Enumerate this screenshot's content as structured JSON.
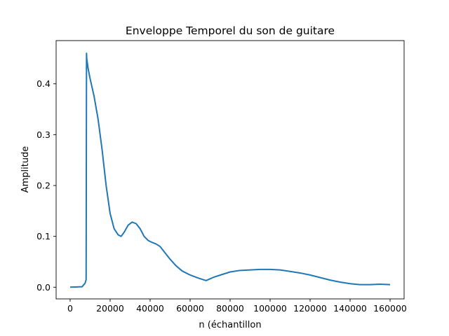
{
  "chart_data": {
    "type": "line",
    "title": "Enveloppe Temporel du son de guitare",
    "xlabel": "n (échantillon",
    "ylabel": "Amplitude",
    "xlim": [
      -7000,
      167000
    ],
    "ylim": [
      -0.023,
      0.485
    ],
    "xticks": [
      0,
      20000,
      40000,
      60000,
      80000,
      100000,
      120000,
      140000,
      160000
    ],
    "yticks": [
      0.0,
      0.1,
      0.2,
      0.3,
      0.4
    ],
    "grid": false,
    "legend": "none",
    "series": [
      {
        "color": "#1f77b4",
        "x": [
          0,
          6000,
          7500,
          8000,
          8200,
          8300,
          9000,
          10000,
          12000,
          14000,
          16000,
          18000,
          20000,
          22000,
          24000,
          25500,
          27000,
          29000,
          31000,
          33000,
          35000,
          37000,
          39000,
          41000,
          43000,
          45000,
          47000,
          50000,
          53000,
          56000,
          60000,
          64000,
          68000,
          72000,
          76000,
          80000,
          85000,
          90000,
          95000,
          100000,
          105000,
          110000,
          115000,
          120000,
          125000,
          130000,
          135000,
          140000,
          145000,
          150000,
          155000,
          160000
        ],
        "y": [
          0.0,
          0.001,
          0.008,
          0.015,
          0.46,
          0.45,
          0.43,
          0.41,
          0.375,
          0.33,
          0.27,
          0.2,
          0.145,
          0.115,
          0.103,
          0.1,
          0.108,
          0.122,
          0.128,
          0.125,
          0.115,
          0.1,
          0.092,
          0.088,
          0.085,
          0.08,
          0.07,
          0.055,
          0.042,
          0.032,
          0.024,
          0.018,
          0.013,
          0.02,
          0.025,
          0.03,
          0.033,
          0.034,
          0.035,
          0.035,
          0.034,
          0.031,
          0.028,
          0.024,
          0.019,
          0.014,
          0.01,
          0.007,
          0.005,
          0.005,
          0.006,
          0.005
        ]
      }
    ]
  }
}
